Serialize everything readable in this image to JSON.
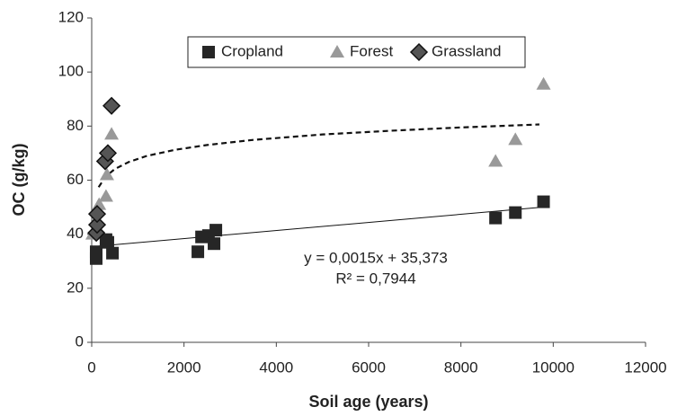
{
  "chart_data": {
    "type": "scatter",
    "xlabel": "Soil age (years)",
    "ylabel": "OC (g/kg)",
    "xlim": [
      0,
      12000
    ],
    "xticks": [
      0,
      2000,
      4000,
      6000,
      8000,
      10000,
      12000
    ],
    "ylim": [
      0,
      120
    ],
    "yticks": [
      0,
      20,
      40,
      60,
      80,
      100,
      120
    ],
    "grid": false,
    "legend": "top",
    "series": [
      {
        "name": "Cropland",
        "color": "#262626",
        "marker": "square",
        "x": [
          97,
          97,
          350,
          450,
          310,
          2300,
          2380,
          2530,
          2650,
          2690,
          8750,
          9180,
          9790
        ],
        "values": [
          33.5,
          31,
          37,
          33,
          38,
          33.5,
          39,
          39.5,
          36.5,
          41.5,
          46,
          48,
          52
        ]
      },
      {
        "name": "Forest",
        "color": "#999999",
        "marker": "triangle",
        "x": [
          20,
          100,
          160,
          310,
          330,
          430,
          8750,
          9180,
          9790
        ],
        "values": [
          40,
          45,
          51,
          54,
          62,
          77,
          67,
          75,
          95.5
        ]
      },
      {
        "name": "Grassland",
        "color": "#555555",
        "marker": "diamond",
        "x": [
          100,
          117,
          117,
          290,
          350,
          430
        ],
        "values": [
          40.5,
          43.5,
          47.5,
          67,
          70,
          87.5
        ]
      }
    ],
    "trend_linear": {
      "x": [
        0,
        9700
      ],
      "values": [
        35.373,
        49.92
      ]
    },
    "trend_dashed": {
      "x": [
        150,
        300,
        500,
        800,
        1200,
        1800,
        2500,
        3500,
        5000,
        6500,
        8000,
        9700
      ],
      "values": [
        57.4,
        61.3,
        64.1,
        66.7,
        69,
        71.2,
        73,
        74.9,
        76.9,
        78.3,
        79.5,
        80.6
      ]
    },
    "annotation": [
      "y = 0,0015x + 35,373",
      "R² = 0,7944"
    ]
  }
}
